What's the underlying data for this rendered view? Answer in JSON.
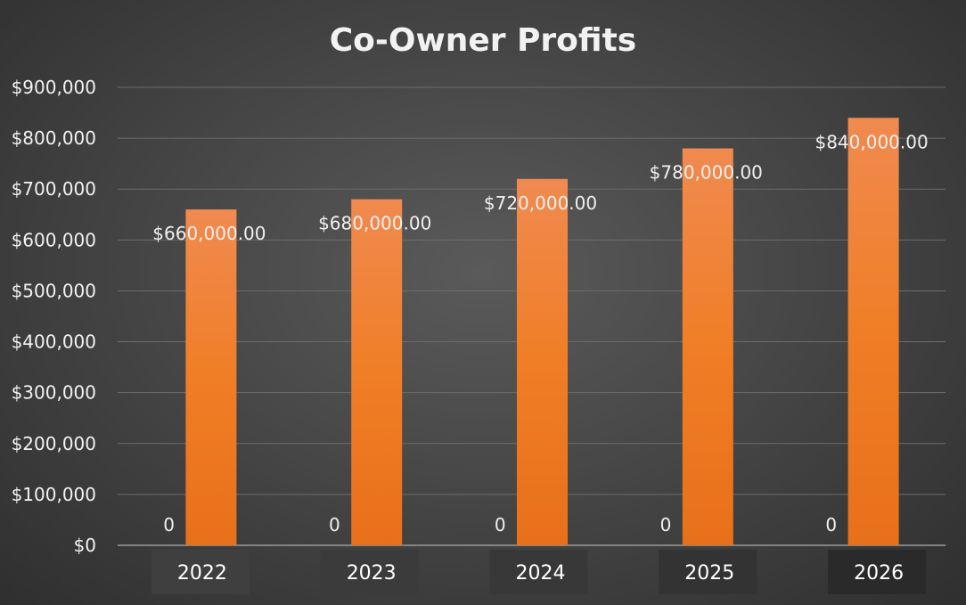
{
  "chart_data": {
    "type": "bar",
    "title": "Co-Owner Profits",
    "categories": [
      "2022",
      "2023",
      "2024",
      "2025",
      "2026"
    ],
    "series": [
      {
        "values": [
          0,
          0,
          0,
          0,
          0
        ],
        "labels": [
          "0",
          "0",
          "0",
          "0",
          "0"
        ],
        "color": "#4a4a4a"
      },
      {
        "values": [
          660000,
          680000,
          720000,
          780000,
          840000
        ],
        "labels": [
          "$660,000.00",
          "$680,000.00",
          "$720,000.00",
          "$780,000.00",
          "$840,000.00"
        ],
        "color": "#f07e26"
      }
    ],
    "ylim": [
      0,
      900000
    ],
    "yticks": [
      0,
      100000,
      200000,
      300000,
      400000,
      500000,
      600000,
      700000,
      800000,
      900000
    ],
    "ytick_labels": [
      "$0",
      "$100,000",
      "$200,000",
      "$300,000",
      "$400,000",
      "$500,000",
      "$600,000",
      "$700,000",
      "$800,000",
      "$900,000"
    ],
    "xlabel": "",
    "ylabel": "",
    "grid": true,
    "legend": "none"
  }
}
